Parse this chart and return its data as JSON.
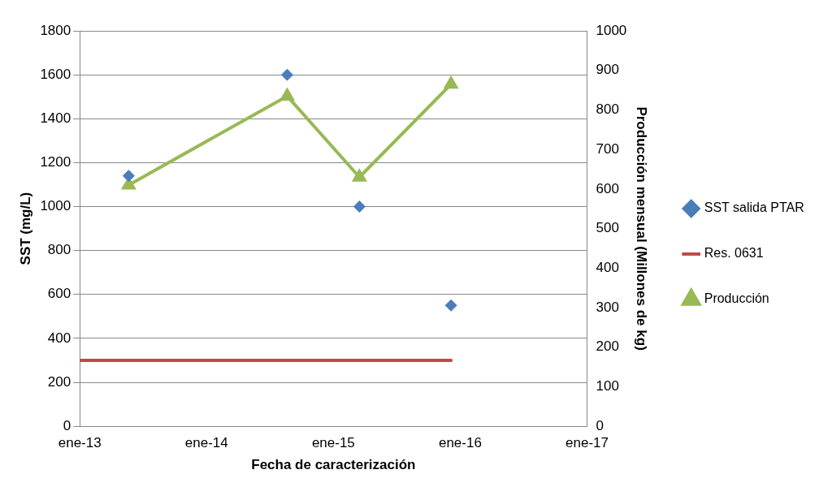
{
  "chart_data": {
    "type": "line",
    "xlabel": "Fecha de caracterización",
    "ylabel": "SST (mg/L)",
    "y2label": "Producción mensual (Millones de kg)",
    "xlim": [
      "2013-01",
      "2017-01"
    ],
    "xticks": [
      {
        "value": "2013-01",
        "label": "ene-13"
      },
      {
        "value": "2014-01",
        "label": "ene-14"
      },
      {
        "value": "2015-01",
        "label": "ene-15"
      },
      {
        "value": "2016-01",
        "label": "ene-16"
      },
      {
        "value": "2017-01",
        "label": "ene-17"
      }
    ],
    "ylim": [
      0,
      1800
    ],
    "yticks": [
      0,
      200,
      400,
      600,
      800,
      1000,
      1200,
      1400,
      1600,
      1800
    ],
    "y2lim": [
      0,
      1000
    ],
    "y2ticks": [
      0,
      100,
      200,
      300,
      400,
      500,
      600,
      700,
      800,
      900,
      1000
    ],
    "grid": "y",
    "legend": "right",
    "series": [
      {
        "name": "SST salida PTAR",
        "type": "scatter",
        "marker": "diamond",
        "color": "#4a7ebb",
        "x": [
          "2013-05-20",
          "2014-08-20",
          "2015-03-15",
          "2015-12-05"
        ],
        "values": [
          1140,
          1600,
          1000,
          550
        ]
      },
      {
        "name": "Res. 0631",
        "marker": "none",
        "color": "#be4b48",
        "x": [
          "2013-01",
          "2015-12-05"
        ],
        "values": [
          300,
          300
        ]
      },
      {
        "name": "Producción",
        "marker": "triangle",
        "axis": "y2",
        "color": "#98b954",
        "x": [
          "2013-05-20",
          "2014-08-20",
          "2015-03-15",
          "2015-12-05"
        ],
        "values": [
          610,
          835,
          630,
          865
        ]
      }
    ]
  }
}
